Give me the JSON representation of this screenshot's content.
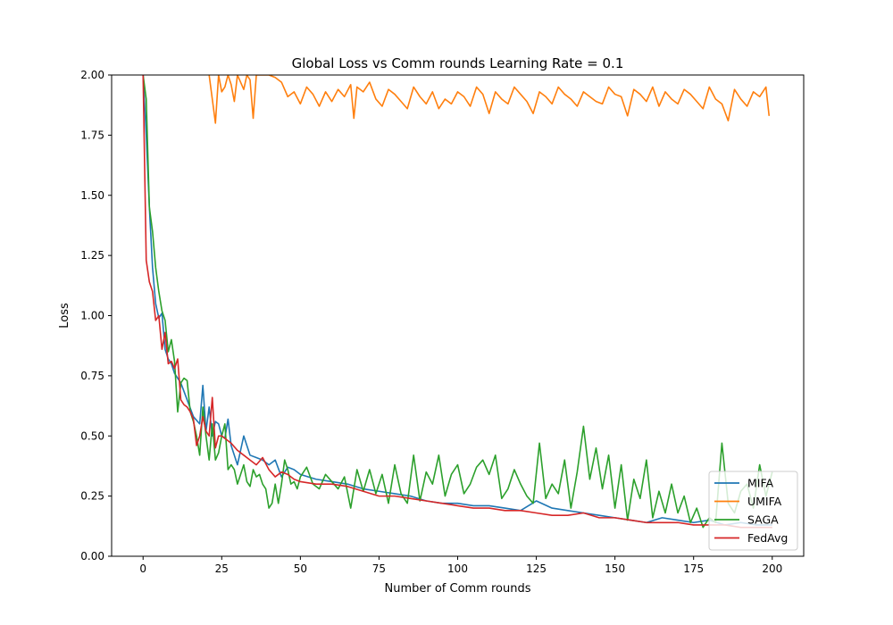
{
  "chart_data": {
    "type": "line",
    "title": "Global Loss vs Comm rounds Learning Rate = 0.1",
    "xlabel": "Number of Comm rounds",
    "ylabel": "Loss",
    "xlim": [
      -10,
      210
    ],
    "ylim": [
      0,
      2.0
    ],
    "xticks": [
      0,
      25,
      50,
      75,
      100,
      125,
      150,
      175,
      200
    ],
    "yticks": [
      0.0,
      0.25,
      0.5,
      0.75,
      1.0,
      1.25,
      1.5,
      1.75,
      2.0
    ],
    "xtick_labels": [
      "0",
      "25",
      "50",
      "75",
      "100",
      "125",
      "150",
      "175",
      "200"
    ],
    "ytick_labels": [
      "0.00",
      "0.25",
      "0.50",
      "0.75",
      "1.00",
      "1.25",
      "1.50",
      "1.75",
      "2.00"
    ],
    "grid": false,
    "legend_position": "lower-right",
    "series": [
      {
        "name": "MIFA",
        "color": "#1f77b4",
        "x": [
          0,
          1,
          2,
          3,
          4,
          5,
          6,
          7,
          8,
          9,
          10,
          12,
          14,
          16,
          18,
          19,
          20,
          21,
          22,
          23,
          24,
          25,
          26,
          27,
          28,
          30,
          32,
          34,
          36,
          38,
          40,
          42,
          44,
          46,
          48,
          50,
          55,
          60,
          65,
          70,
          75,
          80,
          85,
          90,
          95,
          100,
          105,
          110,
          115,
          120,
          125,
          130,
          135,
          140,
          145,
          150,
          155,
          160,
          165,
          170,
          175,
          180,
          185,
          190,
          195,
          200
        ],
        "y": [
          2.0,
          1.75,
          1.45,
          1.2,
          1.05,
          0.99,
          1.01,
          0.86,
          0.82,
          0.8,
          0.76,
          0.72,
          0.65,
          0.58,
          0.55,
          0.71,
          0.52,
          0.62,
          0.5,
          0.56,
          0.55,
          0.5,
          0.49,
          0.57,
          0.46,
          0.38,
          0.5,
          0.42,
          0.41,
          0.4,
          0.38,
          0.4,
          0.33,
          0.37,
          0.36,
          0.34,
          0.32,
          0.31,
          0.3,
          0.28,
          0.27,
          0.26,
          0.25,
          0.23,
          0.22,
          0.22,
          0.21,
          0.21,
          0.2,
          0.19,
          0.23,
          0.2,
          0.19,
          0.18,
          0.17,
          0.16,
          0.15,
          0.14,
          0.16,
          0.15,
          0.14,
          0.15,
          0.13,
          0.14,
          0.13,
          0.13
        ]
      },
      {
        "name": "UMIFA",
        "color": "#ff7f0e",
        "x": [
          21,
          22,
          23,
          24,
          25,
          26,
          27,
          28,
          29,
          30,
          31,
          32,
          33,
          34,
          35,
          36,
          40,
          42,
          44,
          46,
          48,
          50,
          52,
          54,
          56,
          58,
          60,
          62,
          64,
          66,
          67,
          68,
          70,
          72,
          74,
          76,
          78,
          80,
          82,
          84,
          86,
          88,
          90,
          92,
          94,
          96,
          98,
          100,
          102,
          104,
          106,
          108,
          110,
          112,
          114,
          116,
          118,
          120,
          122,
          124,
          126,
          128,
          130,
          132,
          134,
          136,
          138,
          140,
          142,
          144,
          146,
          148,
          150,
          152,
          154,
          156,
          158,
          160,
          162,
          164,
          166,
          168,
          170,
          172,
          174,
          176,
          178,
          180,
          182,
          184,
          186,
          188,
          190,
          192,
          194,
          196,
          198,
          199
        ],
        "y": [
          2.0,
          1.9,
          1.8,
          2.0,
          1.93,
          1.95,
          2.0,
          1.96,
          1.89,
          2.0,
          1.97,
          1.94,
          2.0,
          1.98,
          1.82,
          2.0,
          2.0,
          1.99,
          1.97,
          1.91,
          1.93,
          1.88,
          1.95,
          1.92,
          1.87,
          1.93,
          1.89,
          1.94,
          1.91,
          1.96,
          1.82,
          1.95,
          1.93,
          1.97,
          1.9,
          1.87,
          1.94,
          1.92,
          1.89,
          1.86,
          1.95,
          1.91,
          1.88,
          1.93,
          1.86,
          1.9,
          1.88,
          1.93,
          1.91,
          1.87,
          1.95,
          1.92,
          1.84,
          1.93,
          1.9,
          1.88,
          1.95,
          1.92,
          1.89,
          1.84,
          1.93,
          1.91,
          1.88,
          1.95,
          1.92,
          1.9,
          1.87,
          1.93,
          1.91,
          1.89,
          1.88,
          1.95,
          1.92,
          1.91,
          1.83,
          1.94,
          1.92,
          1.89,
          1.95,
          1.87,
          1.93,
          1.9,
          1.88,
          1.94,
          1.92,
          1.89,
          1.86,
          1.95,
          1.9,
          1.88,
          1.81,
          1.94,
          1.9,
          1.87,
          1.93,
          1.91,
          1.95,
          1.83
        ]
      },
      {
        "name": "SAGA",
        "color": "#2ca02c",
        "x": [
          0,
          1,
          2,
          3,
          4,
          5,
          6,
          7,
          8,
          9,
          10,
          11,
          12,
          13,
          14,
          15,
          16,
          17,
          18,
          19,
          20,
          21,
          22,
          23,
          24,
          25,
          26,
          27,
          28,
          29,
          30,
          31,
          32,
          33,
          34,
          35,
          36,
          37,
          38,
          39,
          40,
          41,
          42,
          43,
          44,
          45,
          46,
          47,
          48,
          49,
          50,
          52,
          54,
          56,
          58,
          60,
          62,
          64,
          66,
          68,
          70,
          72,
          74,
          76,
          78,
          80,
          82,
          84,
          86,
          88,
          90,
          92,
          94,
          96,
          98,
          100,
          102,
          104,
          106,
          108,
          110,
          112,
          114,
          116,
          118,
          120,
          122,
          124,
          126,
          128,
          130,
          132,
          134,
          136,
          138,
          140,
          142,
          144,
          146,
          148,
          150,
          152,
          154,
          156,
          158,
          160,
          162,
          164,
          166,
          168,
          170,
          172,
          174,
          176,
          178,
          180,
          182,
          184,
          186,
          188,
          190,
          192,
          194,
          196,
          198,
          200
        ],
        "y": [
          2.0,
          1.9,
          1.45,
          1.35,
          1.2,
          1.1,
          1.02,
          0.98,
          0.85,
          0.9,
          0.81,
          0.6,
          0.72,
          0.74,
          0.73,
          0.6,
          0.56,
          0.5,
          0.42,
          0.62,
          0.5,
          0.4,
          0.55,
          0.4,
          0.43,
          0.5,
          0.55,
          0.36,
          0.38,
          0.36,
          0.3,
          0.34,
          0.38,
          0.31,
          0.29,
          0.36,
          0.33,
          0.34,
          0.3,
          0.28,
          0.2,
          0.22,
          0.3,
          0.22,
          0.3,
          0.4,
          0.36,
          0.3,
          0.31,
          0.28,
          0.33,
          0.37,
          0.3,
          0.28,
          0.34,
          0.31,
          0.28,
          0.33,
          0.2,
          0.36,
          0.27,
          0.36,
          0.26,
          0.34,
          0.22,
          0.38,
          0.26,
          0.22,
          0.42,
          0.23,
          0.35,
          0.3,
          0.42,
          0.25,
          0.34,
          0.38,
          0.26,
          0.3,
          0.37,
          0.4,
          0.34,
          0.42,
          0.24,
          0.28,
          0.36,
          0.3,
          0.25,
          0.22,
          0.47,
          0.24,
          0.3,
          0.26,
          0.4,
          0.2,
          0.35,
          0.54,
          0.32,
          0.45,
          0.28,
          0.42,
          0.2,
          0.38,
          0.15,
          0.32,
          0.24,
          0.4,
          0.16,
          0.27,
          0.18,
          0.3,
          0.18,
          0.25,
          0.14,
          0.2,
          0.12,
          0.16,
          0.14,
          0.47,
          0.22,
          0.18,
          0.27,
          0.3,
          0.2,
          0.38,
          0.25,
          0.35
        ]
      },
      {
        "name": "FedAvg",
        "color": "#d62728",
        "x": [
          0,
          1,
          2,
          3,
          4,
          5,
          6,
          7,
          8,
          9,
          10,
          11,
          12,
          13,
          14,
          15,
          16,
          17,
          18,
          19,
          20,
          21,
          22,
          23,
          24,
          25,
          26,
          28,
          30,
          32,
          34,
          36,
          38,
          40,
          42,
          44,
          46,
          48,
          50,
          55,
          60,
          65,
          70,
          75,
          80,
          85,
          90,
          95,
          100,
          105,
          110,
          115,
          120,
          125,
          130,
          135,
          140,
          145,
          150,
          155,
          160,
          165,
          170,
          175,
          180,
          185,
          190,
          195,
          200
        ],
        "y": [
          2.0,
          1.23,
          1.14,
          1.1,
          0.98,
          1.0,
          0.86,
          0.93,
          0.8,
          0.81,
          0.78,
          0.82,
          0.65,
          0.63,
          0.62,
          0.6,
          0.57,
          0.46,
          0.5,
          0.58,
          0.52,
          0.5,
          0.66,
          0.45,
          0.5,
          0.5,
          0.49,
          0.47,
          0.44,
          0.42,
          0.4,
          0.38,
          0.41,
          0.36,
          0.33,
          0.35,
          0.34,
          0.32,
          0.31,
          0.3,
          0.3,
          0.29,
          0.27,
          0.25,
          0.25,
          0.24,
          0.23,
          0.22,
          0.21,
          0.2,
          0.2,
          0.19,
          0.19,
          0.18,
          0.17,
          0.17,
          0.18,
          0.16,
          0.16,
          0.15,
          0.14,
          0.14,
          0.14,
          0.13,
          0.13,
          0.13,
          0.12,
          0.12,
          0.12
        ]
      }
    ]
  }
}
